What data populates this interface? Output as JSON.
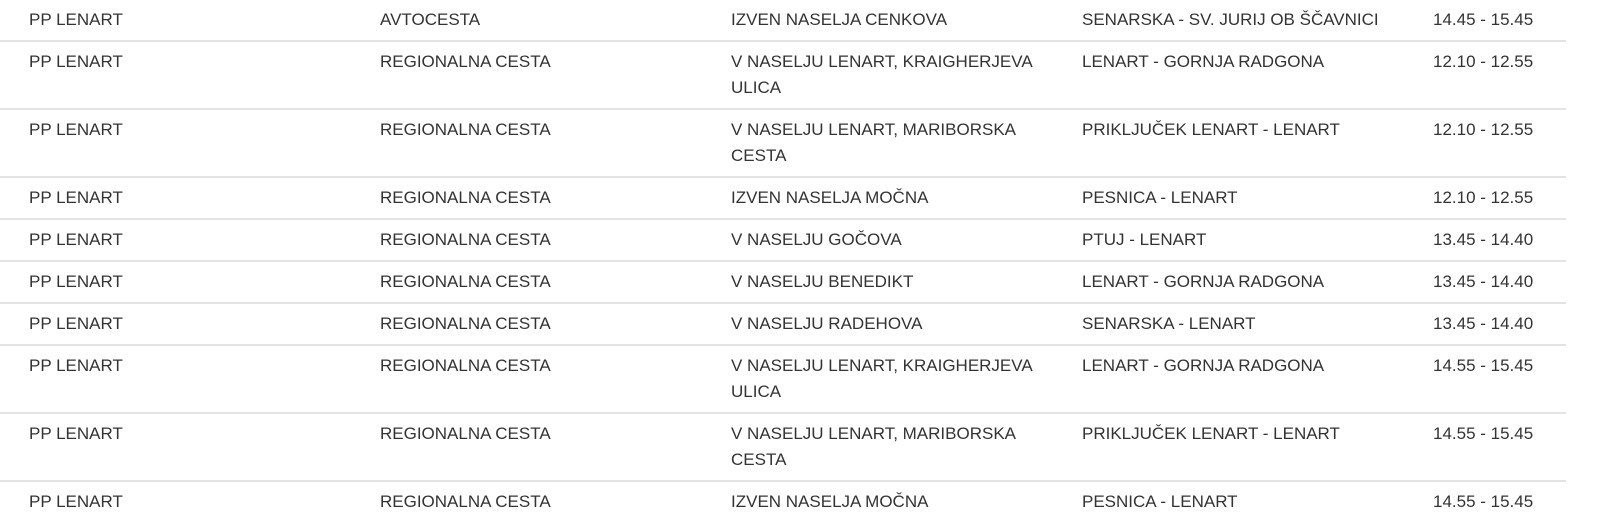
{
  "table": {
    "rows": [
      [
        "PP LENART",
        "AVTOCESTA",
        "IZVEN NASELJA CENKOVA",
        "SENARSKA - SV. JURIJ OB ŠČAVNICI",
        "14.45 - 15.45"
      ],
      [
        "PP LENART",
        "REGIONALNA CESTA",
        "V NASELJU LENART, KRAIGHERJEVA ULICA",
        "LENART - GORNJA RADGONA",
        "12.10 - 12.55"
      ],
      [
        "PP LENART",
        "REGIONALNA CESTA",
        "V NASELJU LENART, MARIBORSKA CESTA",
        "PRIKLJUČEK LENART - LENART",
        "12.10 - 12.55"
      ],
      [
        "PP LENART",
        "REGIONALNA CESTA",
        "IZVEN NASELJA MOČNA",
        "PESNICA - LENART",
        "12.10 - 12.55"
      ],
      [
        "PP LENART",
        "REGIONALNA CESTA",
        "V NASELJU GOČOVA",
        "PTUJ - LENART",
        "13.45 - 14.40"
      ],
      [
        "PP LENART",
        "REGIONALNA CESTA",
        "V NASELJU BENEDIKT",
        "LENART - GORNJA RADGONA",
        "13.45 - 14.40"
      ],
      [
        "PP LENART",
        "REGIONALNA CESTA",
        "V NASELJU RADEHOVA",
        "SENARSKA - LENART",
        "13.45 - 14.40"
      ],
      [
        "PP LENART",
        "REGIONALNA CESTA",
        "V NASELJU LENART, KRAIGHERJEVA ULICA",
        "LENART - GORNJA RADGONA",
        "14.55 - 15.45"
      ],
      [
        "PP LENART",
        "REGIONALNA CESTA",
        "V NASELJU LENART, MARIBORSKA CESTA",
        "PRIKLJUČEK LENART - LENART",
        "14.55 - 15.45"
      ],
      [
        "PP LENART",
        "REGIONALNA CESTA",
        "IZVEN NASELJA MOČNA",
        "PESNICA - LENART",
        "14.55 - 15.45"
      ]
    ]
  }
}
